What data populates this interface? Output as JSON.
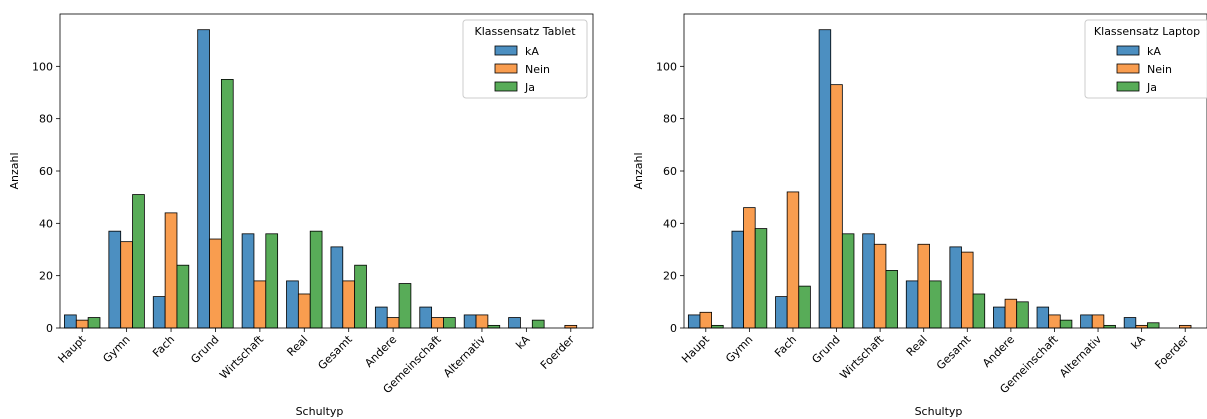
{
  "colors": {
    "kA": "#4c8fc1",
    "Nein": "#f99d4f",
    "Ja": "#58ac58",
    "edge": "#000000"
  },
  "chart_data": [
    {
      "type": "bar",
      "categories": [
        "Haupt",
        "Gymn",
        "Fach",
        "Grund",
        "Wirtschaft",
        "Real",
        "Gesamt",
        "Andere",
        "Gemeinschaft",
        "Alternativ",
        "kA",
        "Foerder"
      ],
      "series": [
        {
          "name": "kA",
          "values": [
            5,
            37,
            12,
            114,
            36,
            18,
            31,
            8,
            8,
            5,
            4,
            0
          ]
        },
        {
          "name": "Nein",
          "values": [
            3,
            33,
            44,
            34,
            18,
            13,
            18,
            4,
            4,
            5,
            0,
            1
          ]
        },
        {
          "name": "Ja",
          "values": [
            4,
            51,
            24,
            95,
            36,
            37,
            24,
            17,
            4,
            1,
            3,
            0
          ]
        }
      ],
      "legend_title": "Klassensatz Tablet",
      "legend_placement": "top-right",
      "xlabel": "Schultyp",
      "ylabel": "Anzahl",
      "ylim": [
        0,
        120
      ],
      "yticks": [
        0,
        20,
        40,
        60,
        80,
        100
      ],
      "grid": false
    },
    {
      "type": "bar",
      "categories": [
        "Haupt",
        "Gymn",
        "Fach",
        "Grund",
        "Wirtschaft",
        "Real",
        "Gesamt",
        "Andere",
        "Gemeinschaft",
        "Alternativ",
        "kA",
        "Foerder"
      ],
      "series": [
        {
          "name": "kA",
          "values": [
            5,
            37,
            12,
            114,
            36,
            18,
            31,
            8,
            8,
            5,
            4,
            0
          ]
        },
        {
          "name": "Nein",
          "values": [
            6,
            46,
            52,
            93,
            32,
            32,
            29,
            11,
            5,
            5,
            1,
            1
          ]
        },
        {
          "name": "Ja",
          "values": [
            1,
            38,
            16,
            36,
            22,
            18,
            13,
            10,
            3,
            1,
            2,
            0
          ]
        }
      ],
      "legend_title": "Klassensatz Laptop",
      "legend_placement": "top-right",
      "xlabel": "Schultyp",
      "ylabel": "Anzahl",
      "ylim": [
        0,
        120
      ],
      "yticks": [
        0,
        20,
        40,
        60,
        80,
        100
      ],
      "grid": false
    }
  ]
}
